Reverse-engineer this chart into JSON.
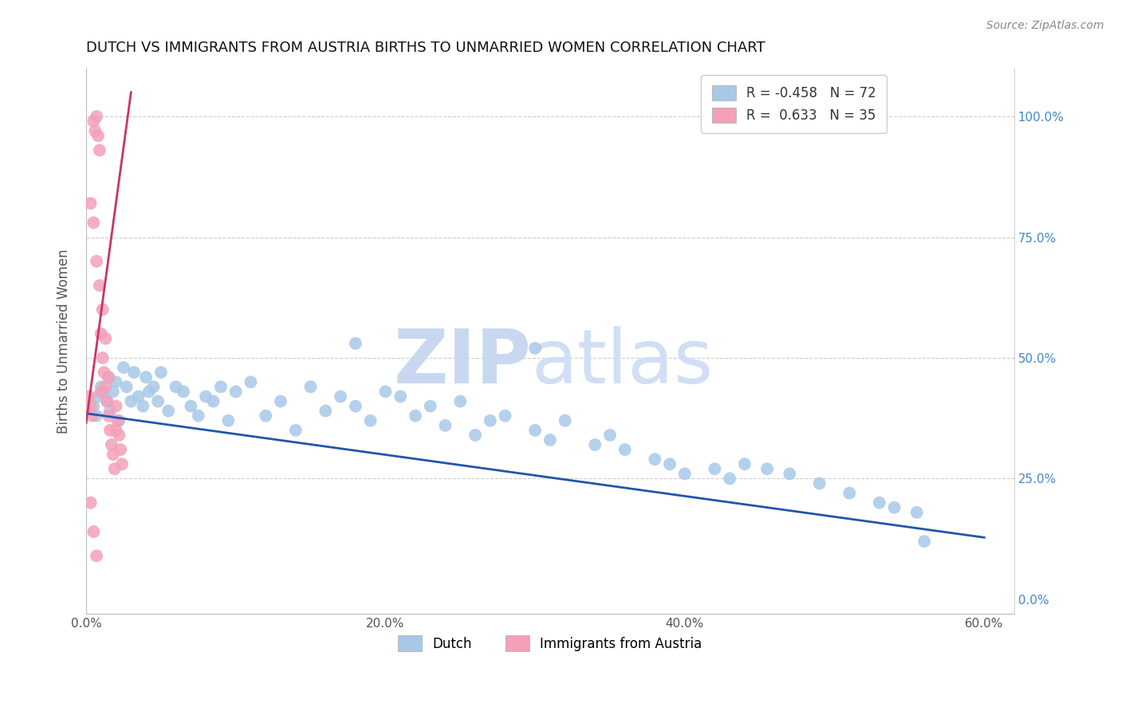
{
  "title": "DUTCH VS IMMIGRANTS FROM AUSTRIA BIRTHS TO UNMARRIED WOMEN CORRELATION CHART",
  "source_text": "Source: ZipAtlas.com",
  "ylabel": "Births to Unmarried Women",
  "xlim": [
    0.0,
    0.62
  ],
  "ylim": [
    -0.03,
    1.1
  ],
  "blue_R": -0.458,
  "blue_N": 72,
  "pink_R": 0.633,
  "pink_N": 35,
  "blue_color": "#a8c8e8",
  "pink_color": "#f4a0b8",
  "blue_line_color": "#2255aa",
  "pink_line_color": "#cc3366",
  "background_color": "#ffffff",
  "legend_label_blue": "Dutch",
  "legend_label_pink": "Immigrants from Austria",
  "blue_trendline_x": [
    0.0,
    0.6
  ],
  "blue_trendline_y": [
    0.385,
    0.128
  ],
  "pink_trendline_x": [
    0.0,
    0.03
  ],
  "pink_trendline_y": [
    0.365,
    1.05
  ],
  "blue_scatter_x": [
    0.005,
    0.007,
    0.008,
    0.01,
    0.012,
    0.014,
    0.015,
    0.016,
    0.018,
    0.02,
    0.022,
    0.025,
    0.027,
    0.03,
    0.032,
    0.035,
    0.038,
    0.04,
    0.042,
    0.045,
    0.048,
    0.05,
    0.055,
    0.06,
    0.065,
    0.07,
    0.075,
    0.08,
    0.085,
    0.09,
    0.095,
    0.1,
    0.11,
    0.12,
    0.13,
    0.14,
    0.15,
    0.16,
    0.17,
    0.18,
    0.19,
    0.2,
    0.21,
    0.22,
    0.23,
    0.24,
    0.25,
    0.26,
    0.27,
    0.28,
    0.3,
    0.31,
    0.32,
    0.34,
    0.35,
    0.36,
    0.38,
    0.39,
    0.4,
    0.42,
    0.43,
    0.44,
    0.455,
    0.47,
    0.49,
    0.51,
    0.53,
    0.54,
    0.555,
    0.56,
    0.3,
    0.18
  ],
  "blue_scatter_y": [
    0.4,
    0.38,
    0.42,
    0.44,
    0.43,
    0.41,
    0.46,
    0.39,
    0.43,
    0.45,
    0.37,
    0.48,
    0.44,
    0.41,
    0.47,
    0.42,
    0.4,
    0.46,
    0.43,
    0.44,
    0.41,
    0.47,
    0.39,
    0.44,
    0.43,
    0.4,
    0.38,
    0.42,
    0.41,
    0.44,
    0.37,
    0.43,
    0.45,
    0.38,
    0.41,
    0.35,
    0.44,
    0.39,
    0.42,
    0.4,
    0.37,
    0.43,
    0.42,
    0.38,
    0.4,
    0.36,
    0.41,
    0.34,
    0.37,
    0.38,
    0.35,
    0.33,
    0.37,
    0.32,
    0.34,
    0.31,
    0.29,
    0.28,
    0.26,
    0.27,
    0.25,
    0.28,
    0.27,
    0.26,
    0.24,
    0.22,
    0.2,
    0.19,
    0.18,
    0.12,
    0.52,
    0.53
  ],
  "pink_scatter_x": [
    0.002,
    0.003,
    0.004,
    0.005,
    0.006,
    0.007,
    0.008,
    0.009,
    0.01,
    0.011,
    0.012,
    0.013,
    0.014,
    0.015,
    0.016,
    0.017,
    0.018,
    0.019,
    0.02,
    0.021,
    0.022,
    0.023,
    0.024,
    0.003,
    0.005,
    0.007,
    0.009,
    0.011,
    0.013,
    0.015,
    0.003,
    0.005,
    0.007,
    0.02,
    0.01
  ],
  "pink_scatter_y": [
    0.42,
    0.4,
    0.38,
    0.99,
    0.97,
    1.0,
    0.96,
    0.93,
    0.55,
    0.5,
    0.47,
    0.44,
    0.41,
    0.38,
    0.35,
    0.32,
    0.3,
    0.27,
    0.4,
    0.37,
    0.34,
    0.31,
    0.28,
    0.82,
    0.78,
    0.7,
    0.65,
    0.6,
    0.54,
    0.46,
    0.2,
    0.14,
    0.09,
    0.35,
    0.43
  ]
}
